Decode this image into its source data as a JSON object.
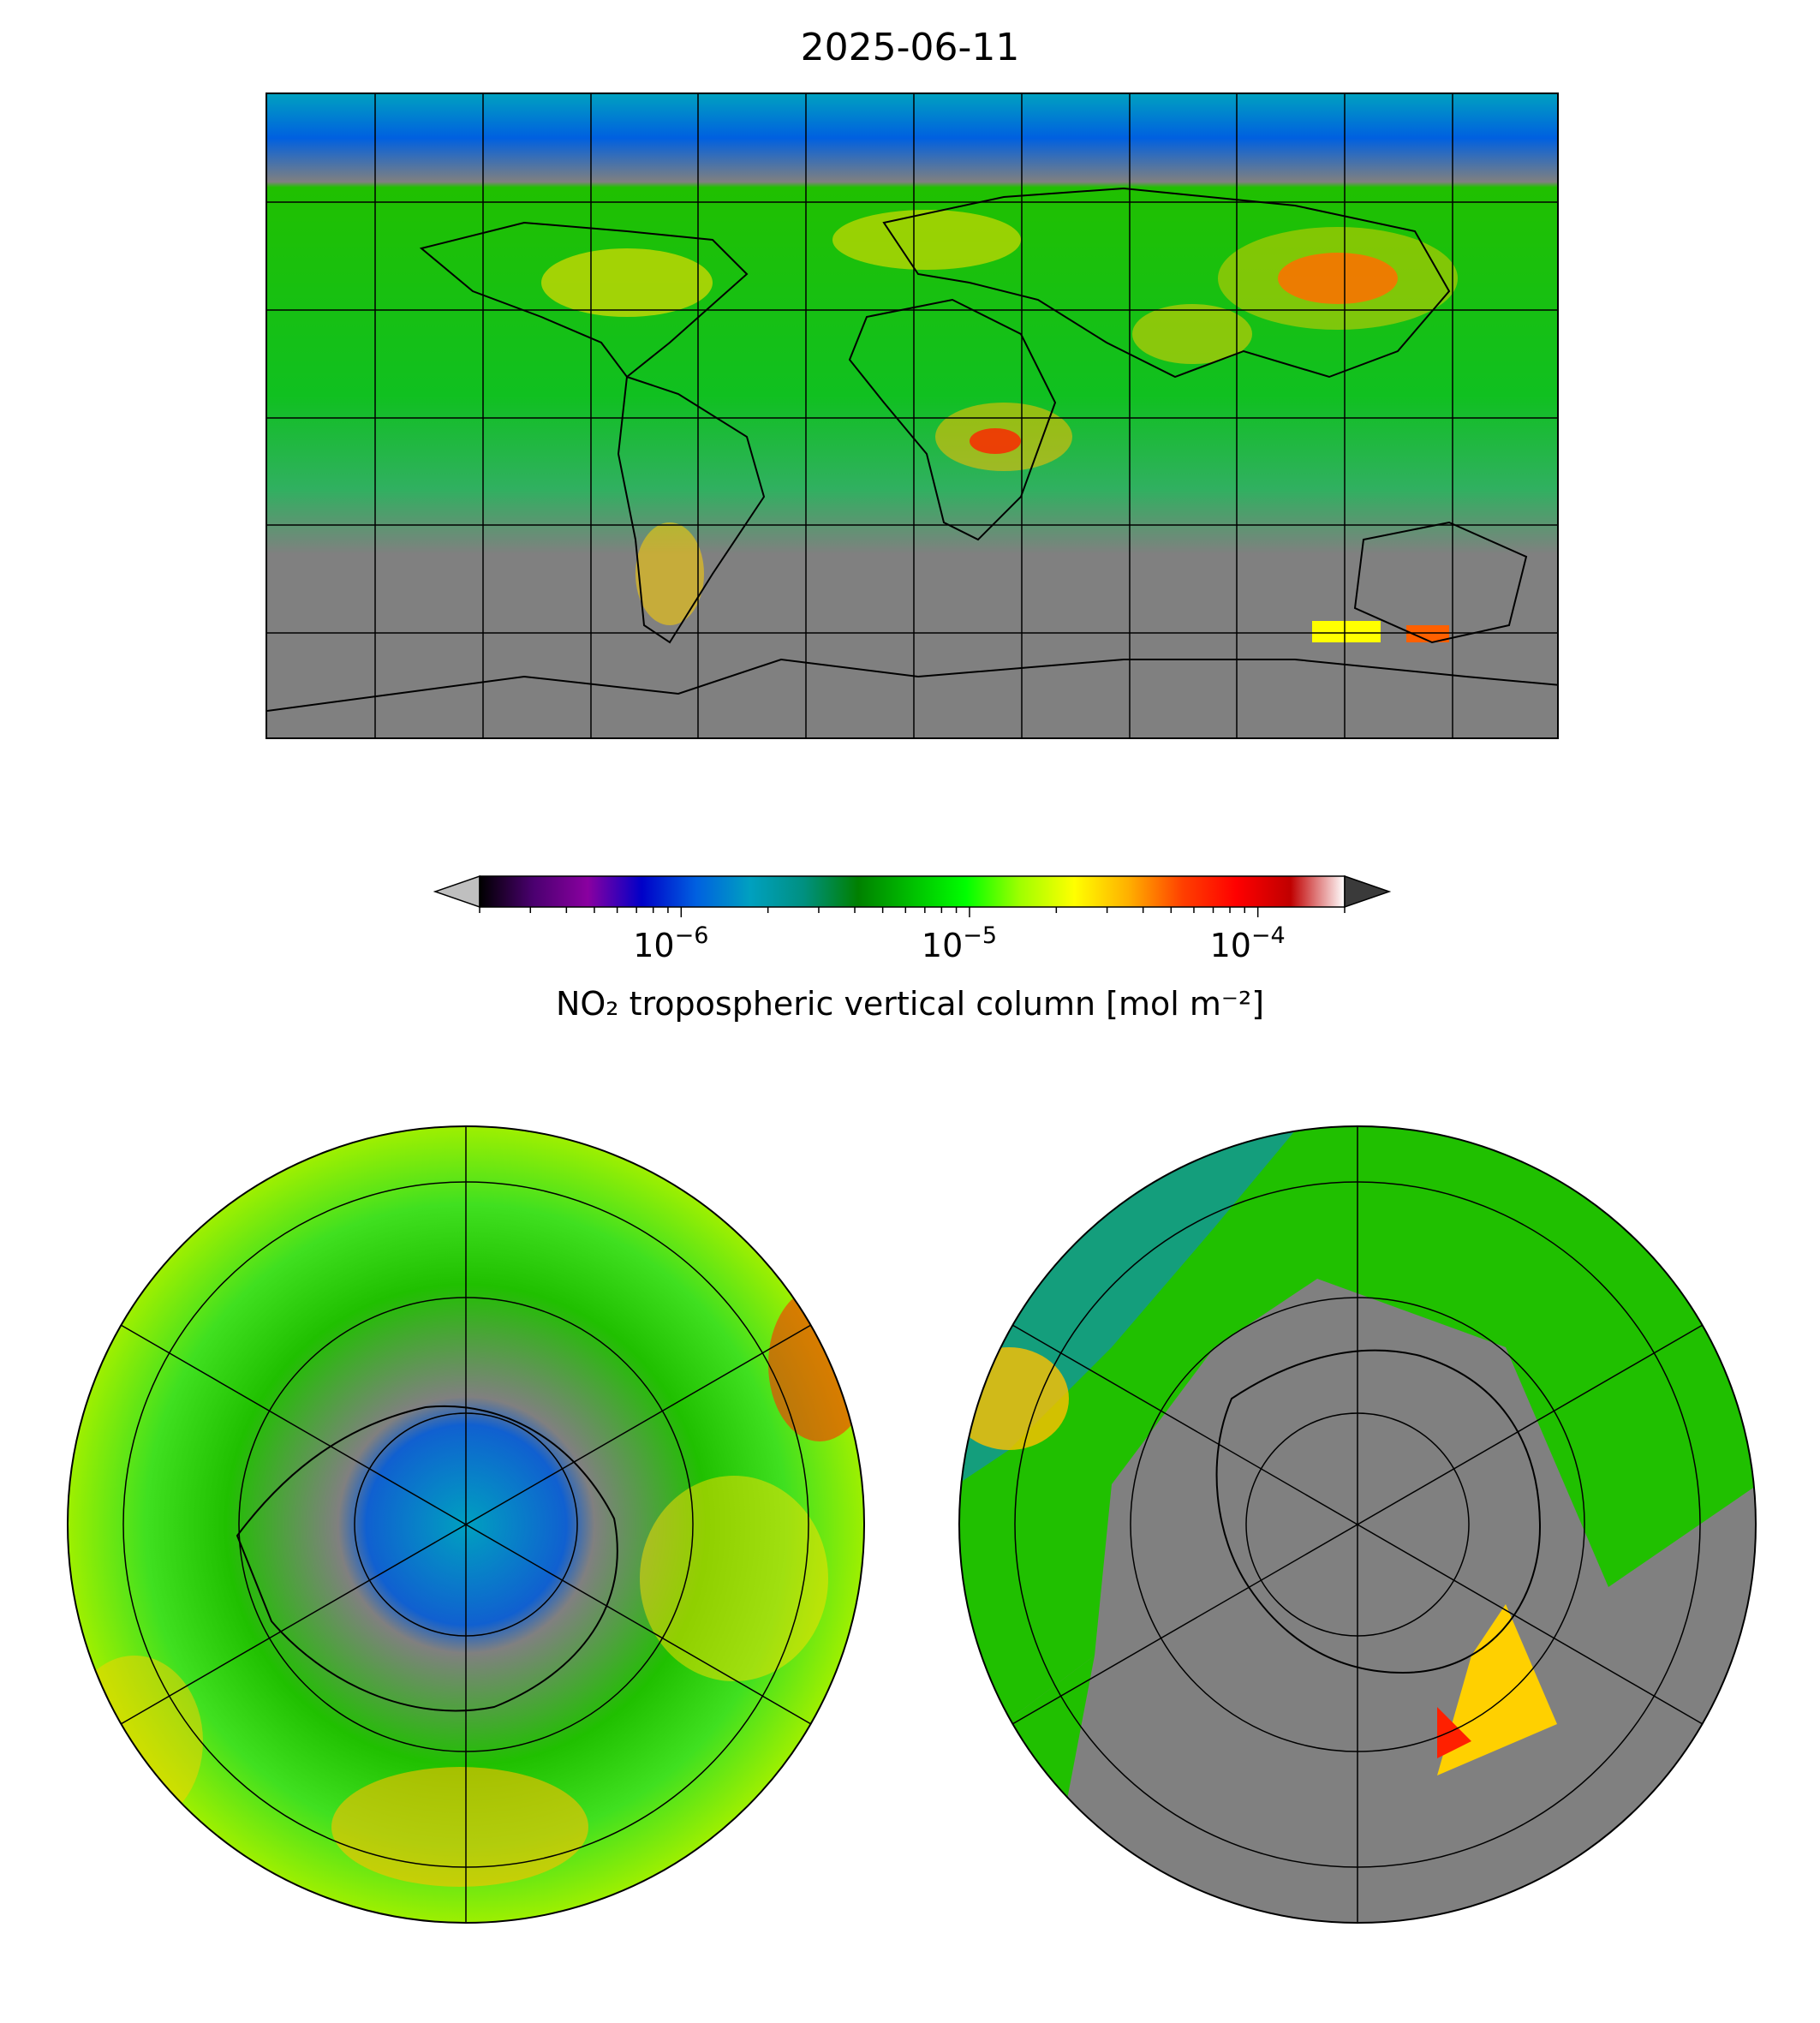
{
  "title": "2025-06-11",
  "colorbar": {
    "label": "NO₂ tropospheric vertical column [mol m⁻²]",
    "scale": "log",
    "range": [
      2e-07,
      0.0002
    ],
    "ticks": [
      {
        "value": 1e-06,
        "base": "10",
        "exp": "−6"
      },
      {
        "value": 1e-05,
        "base": "10",
        "exp": "−5"
      },
      {
        "value": 0.0001,
        "base": "10",
        "exp": "−4"
      }
    ],
    "extend": "both",
    "colors": [
      "#000000",
      "#4b0070",
      "#8a00a0",
      "#0000c8",
      "#0060e0",
      "#00a0c0",
      "#009080",
      "#008000",
      "#00c000",
      "#00ff00",
      "#a0ff00",
      "#ffff00",
      "#ffb000",
      "#ff4000",
      "#ff0000",
      "#c00000",
      "#ffffff"
    ],
    "under_color": "#bfbfbf",
    "over_color": "#3a3a3a"
  },
  "maps": {
    "global": {
      "projection": "plate-carree",
      "no_data_color": "#808080"
    },
    "north_polar": {
      "projection": "north-polar-stereographic"
    },
    "south_polar": {
      "projection": "south-polar-stereographic"
    }
  }
}
